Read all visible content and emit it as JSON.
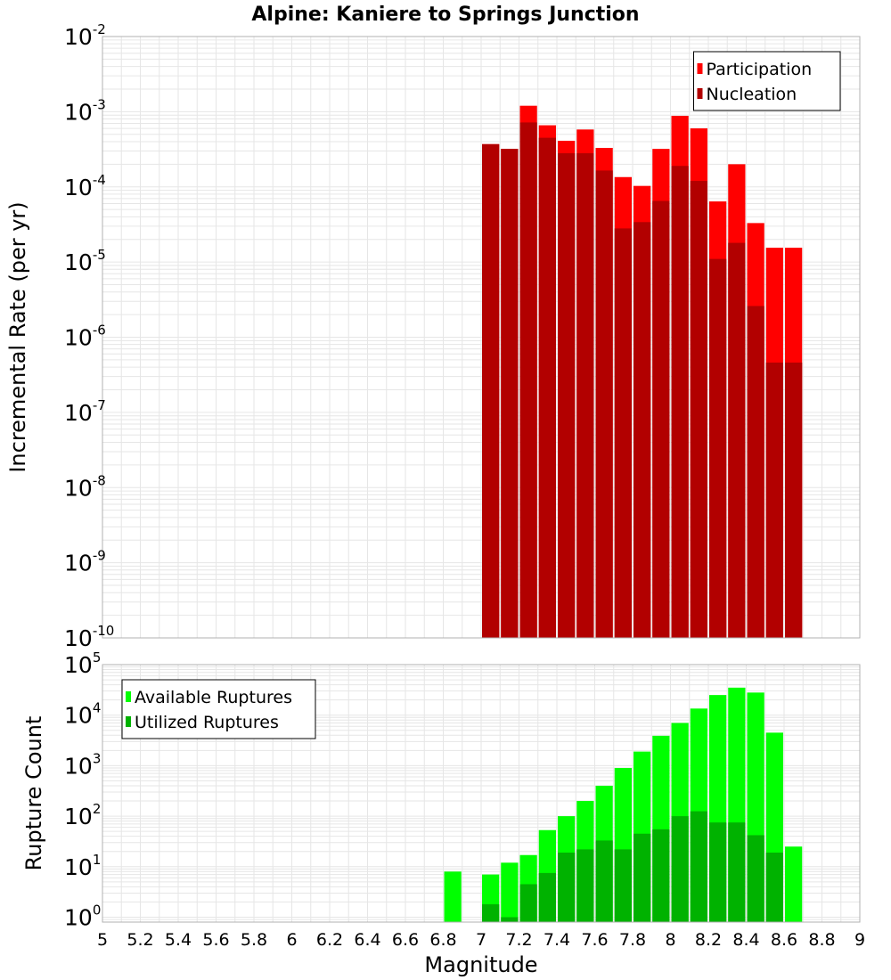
{
  "title": "Alpine: Kaniere to Springs Junction",
  "chart_data": [
    {
      "type": "bar",
      "ylabel": "Incremental Rate (per yr)",
      "yscale": "log",
      "ylim": [
        1e-10,
        0.01
      ],
      "xlim": [
        5,
        9
      ],
      "grid": true,
      "legend_position": "top-right",
      "bar_width": 0.1,
      "series": [
        {
          "name": "Participation",
          "color": "#ff0000",
          "x": [
            7.0,
            7.1,
            7.2,
            7.3,
            7.4,
            7.5,
            7.6,
            7.7,
            7.8,
            7.9,
            8.0,
            8.1,
            8.2,
            8.3,
            8.4,
            8.5,
            8.6
          ],
          "values": [
            0.00037,
            0.00032,
            0.0012,
            0.00066,
            0.00041,
            0.00058,
            0.00033,
            0.000135,
            0.000103,
            0.00032,
            0.00088,
            0.0006,
            6.4e-05,
            0.0002,
            3.3e-05,
            1.55e-05,
            1.55e-05
          ]
        },
        {
          "name": "Nucleation",
          "color": "#b20000",
          "x": [
            7.0,
            7.1,
            7.2,
            7.3,
            7.4,
            7.5,
            7.6,
            7.7,
            7.8,
            7.9,
            8.0,
            8.1,
            8.2,
            8.3,
            8.4,
            8.5,
            8.6
          ],
          "values": [
            0.00037,
            0.00032,
            0.00072,
            0.00045,
            0.00028,
            0.00028,
            0.000165,
            2.8e-05,
            3.4e-05,
            6.5e-05,
            0.00019,
            0.00012,
            1.1e-05,
            1.8e-05,
            2.6e-06,
            4.6e-07,
            4.6e-07
          ]
        }
      ]
    },
    {
      "type": "bar",
      "xlabel": "Magnitude",
      "ylabel": "Rupture Count",
      "yscale": "log",
      "ylim": [
        0.8,
        100000
      ],
      "xlim": [
        5,
        9
      ],
      "xticks": [
        "5",
        "5.2",
        "5.4",
        "5.6",
        "5.8",
        "6",
        "6.2",
        "6.4",
        "6.6",
        "6.8",
        "7",
        "7.2",
        "7.4",
        "7.6",
        "7.8",
        "8",
        "8.2",
        "8.4",
        "8.6",
        "8.8",
        "9"
      ],
      "grid": true,
      "legend_position": "top-left",
      "bar_width": 0.1,
      "series": [
        {
          "name": "Available Ruptures",
          "color": "#00ff00",
          "x": [
            6.8,
            7.0,
            7.1,
            7.2,
            7.3,
            7.4,
            7.5,
            7.6,
            7.7,
            7.8,
            7.9,
            8.0,
            8.1,
            8.2,
            8.3,
            8.4,
            8.5,
            8.6
          ],
          "values": [
            8,
            7,
            12,
            17,
            53,
            100,
            200,
            400,
            900,
            1900,
            3900,
            7000,
            13500,
            25000,
            35000,
            28000,
            4500,
            25
          ]
        },
        {
          "name": "Utilized Ruptures",
          "color": "#00b200",
          "x": [
            7.0,
            7.1,
            7.2,
            7.3,
            7.4,
            7.5,
            7.6,
            7.7,
            7.8,
            7.9,
            8.0,
            8.1,
            8.2,
            8.3,
            8.4,
            8.5
          ],
          "values": [
            1.8,
            1,
            4.5,
            7.5,
            19,
            22,
            33,
            22,
            45,
            55,
            100,
            125,
            75,
            75,
            42,
            19
          ]
        }
      ]
    }
  ]
}
